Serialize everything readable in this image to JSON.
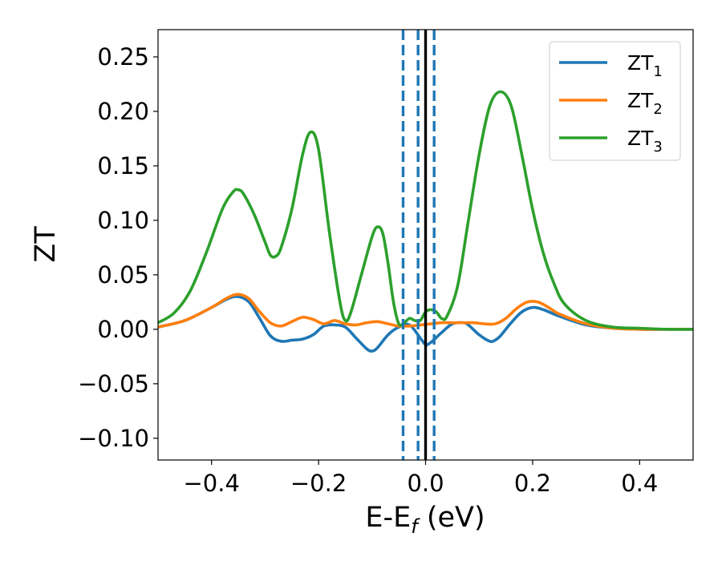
{
  "chart_data": {
    "type": "line",
    "title": "",
    "xlabel": {
      "base": "E-E",
      "sub": "f",
      "suffix": " (eV)"
    },
    "ylabel": "ZT",
    "xlim": [
      -0.5,
      0.5
    ],
    "ylim": [
      -0.12,
      0.275
    ],
    "xticks": [
      -0.4,
      -0.2,
      0.0,
      0.2,
      0.4
    ],
    "xtick_labels": [
      "−0.4",
      "−0.2",
      "0.0",
      "0.2",
      "0.4"
    ],
    "yticks": [
      -0.1,
      -0.05,
      0.0,
      0.05,
      0.1,
      0.15,
      0.2,
      0.25
    ],
    "ytick_labels": [
      "−0.10",
      "−0.05",
      "0.00",
      "0.05",
      "0.10",
      "0.15",
      "0.20",
      "0.25"
    ],
    "grid": false,
    "legend_position": "top-right",
    "series": [
      {
        "name": "ZT",
        "sub": "1",
        "color": "#1f77b4",
        "x": [
          -0.5,
          -0.45,
          -0.4,
          -0.37,
          -0.35,
          -0.33,
          -0.31,
          -0.29,
          -0.27,
          -0.25,
          -0.23,
          -0.21,
          -0.19,
          -0.17,
          -0.15,
          -0.13,
          -0.11,
          -0.1,
          -0.09,
          -0.07,
          -0.05,
          -0.03,
          -0.01,
          0.0,
          0.01,
          0.03,
          0.05,
          0.07,
          0.08,
          0.1,
          0.12,
          0.13,
          0.14,
          0.16,
          0.18,
          0.2,
          0.22,
          0.25,
          0.3,
          0.35,
          0.4,
          0.45,
          0.5
        ],
        "y": [
          0.002,
          0.008,
          0.02,
          0.028,
          0.03,
          0.025,
          0.01,
          -0.006,
          -0.011,
          -0.01,
          -0.009,
          -0.005,
          0.003,
          0.004,
          0.002,
          -0.008,
          -0.018,
          -0.02,
          -0.017,
          -0.005,
          0.002,
          0.004,
          -0.008,
          -0.014,
          -0.012,
          -0.003,
          0.005,
          0.006,
          0.004,
          -0.005,
          -0.011,
          -0.01,
          -0.006,
          0.006,
          0.016,
          0.02,
          0.018,
          0.012,
          0.004,
          0.001,
          0.0,
          0.0,
          0.0
        ]
      },
      {
        "name": "ZT",
        "sub": "2",
        "color": "#ff7f0e",
        "x": [
          -0.5,
          -0.45,
          -0.4,
          -0.37,
          -0.35,
          -0.33,
          -0.31,
          -0.29,
          -0.27,
          -0.25,
          -0.23,
          -0.21,
          -0.19,
          -0.17,
          -0.15,
          -0.13,
          -0.11,
          -0.09,
          -0.07,
          -0.05,
          -0.03,
          -0.01,
          0.01,
          0.03,
          0.05,
          0.07,
          0.09,
          0.11,
          0.13,
          0.15,
          0.17,
          0.19,
          0.21,
          0.23,
          0.25,
          0.3,
          0.35,
          0.4,
          0.45,
          0.5
        ],
        "y": [
          0.002,
          0.008,
          0.02,
          0.029,
          0.032,
          0.028,
          0.016,
          0.006,
          0.003,
          0.007,
          0.011,
          0.009,
          0.005,
          0.008,
          0.005,
          0.004,
          0.006,
          0.007,
          0.005,
          0.003,
          0.003,
          0.004,
          0.005,
          0.006,
          0.006,
          0.006,
          0.006,
          0.005,
          0.005,
          0.01,
          0.019,
          0.025,
          0.025,
          0.02,
          0.014,
          0.005,
          0.001,
          0.0,
          0.0,
          0.0
        ]
      },
      {
        "name": "ZT",
        "sub": "3",
        "color": "#2ca02c",
        "x": [
          -0.5,
          -0.47,
          -0.44,
          -0.41,
          -0.38,
          -0.36,
          -0.35,
          -0.34,
          -0.32,
          -0.3,
          -0.29,
          -0.28,
          -0.27,
          -0.25,
          -0.23,
          -0.215,
          -0.2,
          -0.18,
          -0.16,
          -0.15,
          -0.14,
          -0.12,
          -0.1,
          -0.09,
          -0.08,
          -0.07,
          -0.06,
          -0.05,
          -0.04,
          -0.03,
          -0.02,
          -0.01,
          0.0,
          0.01,
          0.02,
          0.03,
          0.04,
          0.06,
          0.08,
          0.1,
          0.12,
          0.14,
          0.16,
          0.18,
          0.2,
          0.22,
          0.24,
          0.26,
          0.3,
          0.35,
          0.4,
          0.45,
          0.5
        ],
        "y": [
          0.006,
          0.015,
          0.035,
          0.07,
          0.11,
          0.126,
          0.128,
          0.124,
          0.105,
          0.08,
          0.068,
          0.067,
          0.075,
          0.11,
          0.16,
          0.181,
          0.165,
          0.09,
          0.025,
          0.008,
          0.015,
          0.05,
          0.085,
          0.094,
          0.088,
          0.06,
          0.025,
          0.005,
          0.006,
          0.01,
          0.008,
          0.008,
          0.016,
          0.018,
          0.016,
          0.01,
          0.012,
          0.04,
          0.1,
          0.16,
          0.205,
          0.218,
          0.205,
          0.16,
          0.11,
          0.07,
          0.042,
          0.023,
          0.008,
          0.002,
          0.001,
          0.0,
          0.0
        ]
      }
    ],
    "vlines": [
      {
        "x": -0.042,
        "style": "dashed",
        "color": "#1f77b4"
      },
      {
        "x": -0.014,
        "style": "dashed",
        "color": "#1f77b4"
      },
      {
        "x": 0.0,
        "style": "solid",
        "color": "#000000"
      },
      {
        "x": 0.016,
        "style": "dashed",
        "color": "#1f77b4"
      }
    ]
  }
}
